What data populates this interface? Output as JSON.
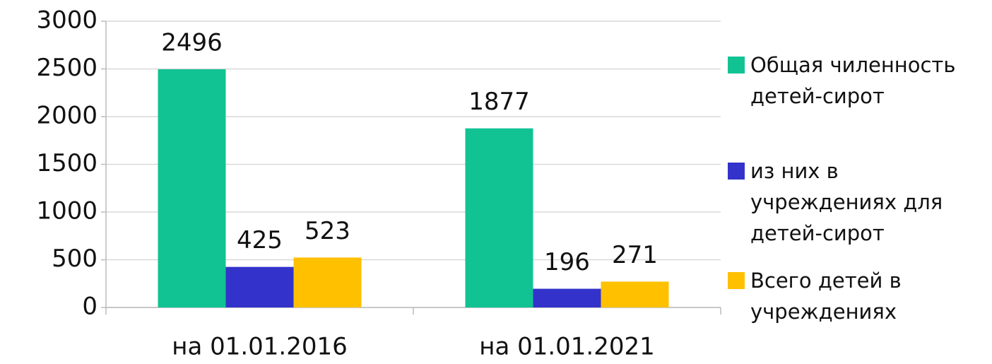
{
  "chart_data": {
    "type": "bar",
    "categories": [
      "на 01.01.2016",
      "на 01.01.2021"
    ],
    "series": [
      {
        "name": "Общая чиленность детей-сирот",
        "color": "#11c393",
        "values": [
          2496,
          1877
        ]
      },
      {
        "name": "из них в учреждениях для детей-сирот",
        "color": "#3333cc",
        "values": [
          425,
          196
        ]
      },
      {
        "name": "Всего детей в учреждениях",
        "color": "#ffc000",
        "values": [
          523,
          271
        ]
      }
    ],
    "ylim": [
      0,
      3000
    ],
    "yticks": [
      0,
      500,
      1000,
      1500,
      2000,
      2500,
      3000
    ],
    "grid": true,
    "legend": "right"
  }
}
